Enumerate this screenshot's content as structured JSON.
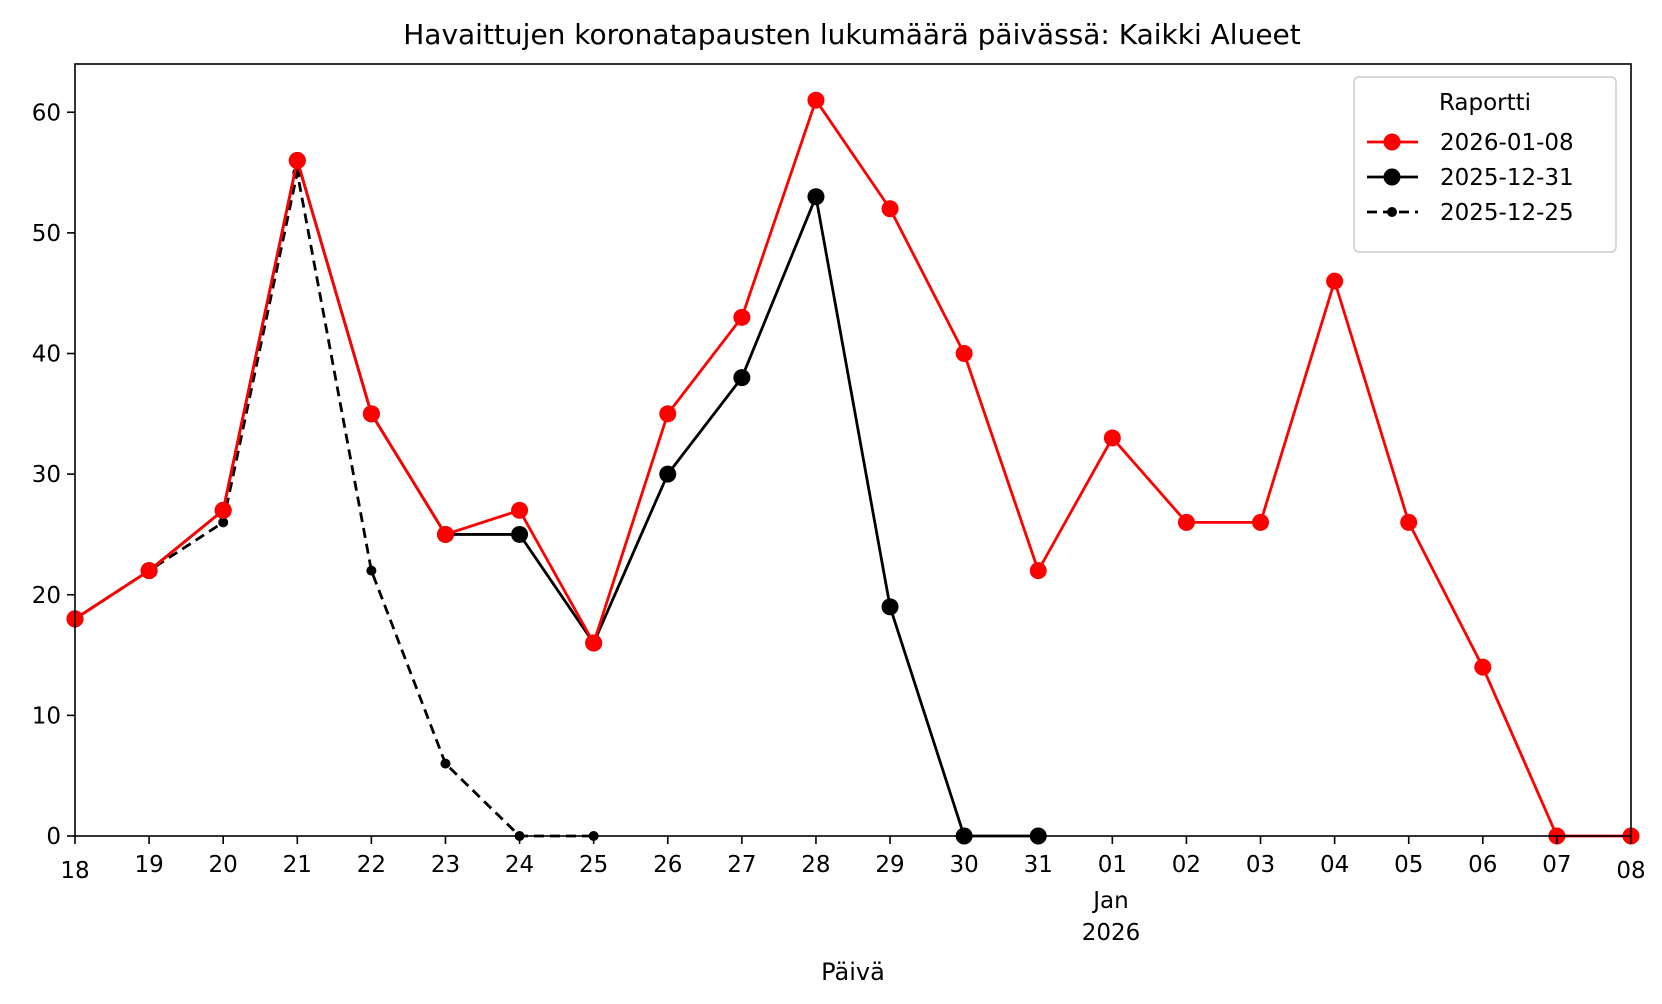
{
  "chart_data": {
    "type": "line",
    "title": "Havaittujen koronatapausten lukumäärä päivässä: Kaikki Alueet",
    "xlabel": "Päivä",
    "ylabel": "",
    "x_dates": [
      "2025-12-18",
      "2025-12-19",
      "2025-12-20",
      "2025-12-21",
      "2025-12-22",
      "2025-12-23",
      "2025-12-24",
      "2025-12-25",
      "2025-12-26",
      "2025-12-27",
      "2025-12-28",
      "2025-12-29",
      "2025-12-30",
      "2025-12-31",
      "2026-01-01",
      "2026-01-02",
      "2026-01-03",
      "2026-01-04",
      "2026-01-05",
      "2026-01-06",
      "2026-01-07",
      "2026-01-08"
    ],
    "x_tick_labels": [
      "18",
      "19",
      "20",
      "21",
      "22",
      "23",
      "24",
      "25",
      "26",
      "27",
      "28",
      "29",
      "30",
      "31",
      "01",
      "02",
      "03",
      "04",
      "05",
      "06",
      "07",
      "08"
    ],
    "x_secondary_label": [
      "Jan",
      "2026"
    ],
    "xlim": [
      "2025-12-18",
      "2026-01-08"
    ],
    "ylim": [
      0,
      64
    ],
    "y_ticks": [
      0,
      10,
      20,
      30,
      40,
      50,
      60
    ],
    "grid": false,
    "legend": {
      "title": "Raportti",
      "placement": "top-right"
    },
    "series": [
      {
        "name": "2026-01-08",
        "color": "#ff0000",
        "style": "solid",
        "marker": "large-dot",
        "x": [
          "2025-12-18",
          "2025-12-19",
          "2025-12-20",
          "2025-12-21",
          "2025-12-22",
          "2025-12-23",
          "2025-12-24",
          "2025-12-25",
          "2025-12-26",
          "2025-12-27",
          "2025-12-28",
          "2025-12-29",
          "2025-12-30",
          "2025-12-31",
          "2026-01-01",
          "2026-01-02",
          "2026-01-03",
          "2026-01-04",
          "2026-01-05",
          "2026-01-06",
          "2026-01-07",
          "2026-01-08"
        ],
        "values": [
          18,
          22,
          27,
          56,
          35,
          25,
          27,
          16,
          35,
          43,
          61,
          52,
          40,
          22,
          33,
          26,
          26,
          46,
          26,
          14,
          0,
          0
        ]
      },
      {
        "name": "2025-12-31",
        "color": "#000000",
        "style": "solid",
        "marker": "large-dot",
        "x": [
          "2025-12-18",
          "2025-12-19",
          "2025-12-20",
          "2025-12-21",
          "2025-12-22",
          "2025-12-23",
          "2025-12-24",
          "2025-12-25",
          "2025-12-26",
          "2025-12-27",
          "2025-12-28",
          "2025-12-29",
          "2025-12-30",
          "2025-12-31"
        ],
        "values": [
          18,
          22,
          27,
          56,
          35,
          25,
          25,
          16,
          30,
          38,
          53,
          19,
          0,
          0
        ]
      },
      {
        "name": "2025-12-25",
        "color": "#000000",
        "style": "dashed",
        "marker": "small-dot",
        "x": [
          "2025-12-18",
          "2025-12-19",
          "2025-12-20",
          "2025-12-21",
          "2025-12-22",
          "2025-12-23",
          "2025-12-24",
          "2025-12-25"
        ],
        "values": [
          18,
          22,
          26,
          55,
          22,
          6,
          0,
          0
        ]
      }
    ]
  }
}
